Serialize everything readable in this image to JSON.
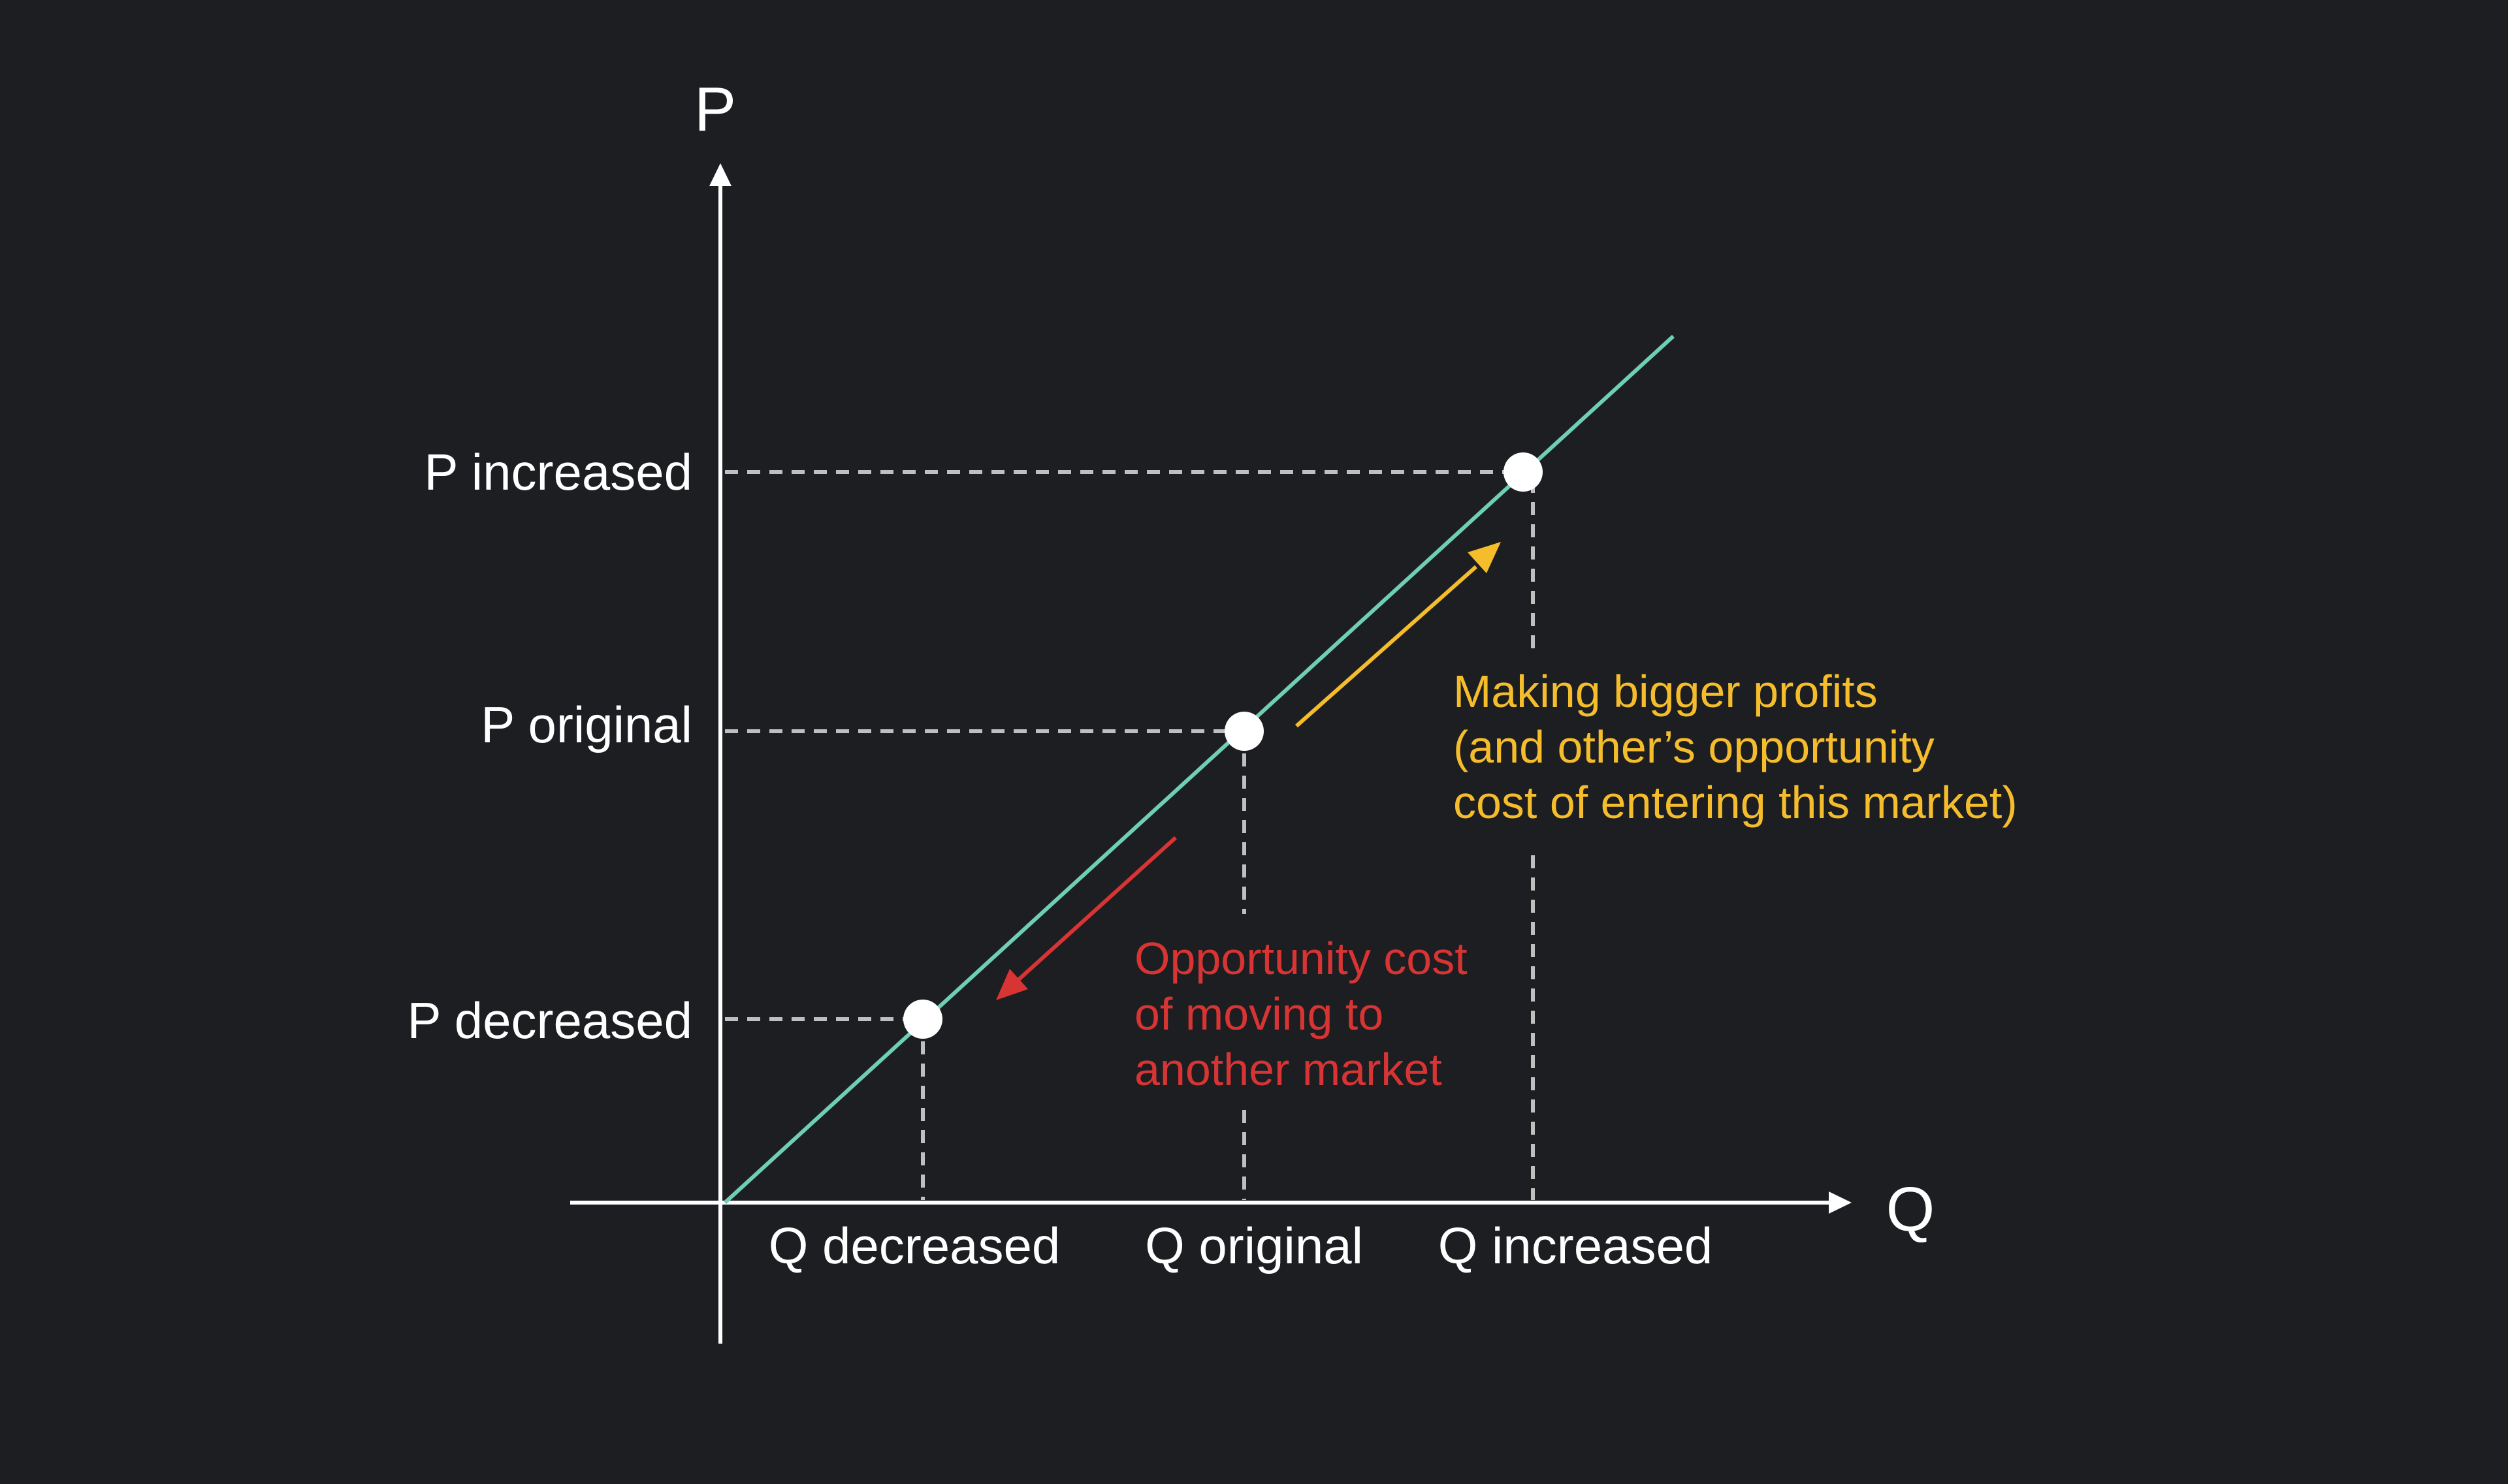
{
  "colors": {
    "background": "#1d1e21",
    "axis": "#ffffff",
    "text": "#ffffff",
    "supply_line": "#6fcfb4",
    "guide": "#bfbfbf",
    "point": "#ffffff",
    "up_arrow": "#f5bd2c",
    "down_arrow": "#d83434"
  },
  "axes": {
    "y_title": "P",
    "x_title": "Q"
  },
  "price_labels": {
    "increased": "P increased",
    "original": "P original",
    "decreased": "P decreased"
  },
  "quantity_labels": {
    "decreased": "Q decreased",
    "original": "Q original",
    "increased": "Q increased"
  },
  "annotations": {
    "profit": [
      "Making bigger profits",
      "(and other’s opportunity",
      "cost of entering this market)"
    ],
    "opportunity": [
      "Opportunity cost",
      "of moving to",
      "another market"
    ]
  }
}
